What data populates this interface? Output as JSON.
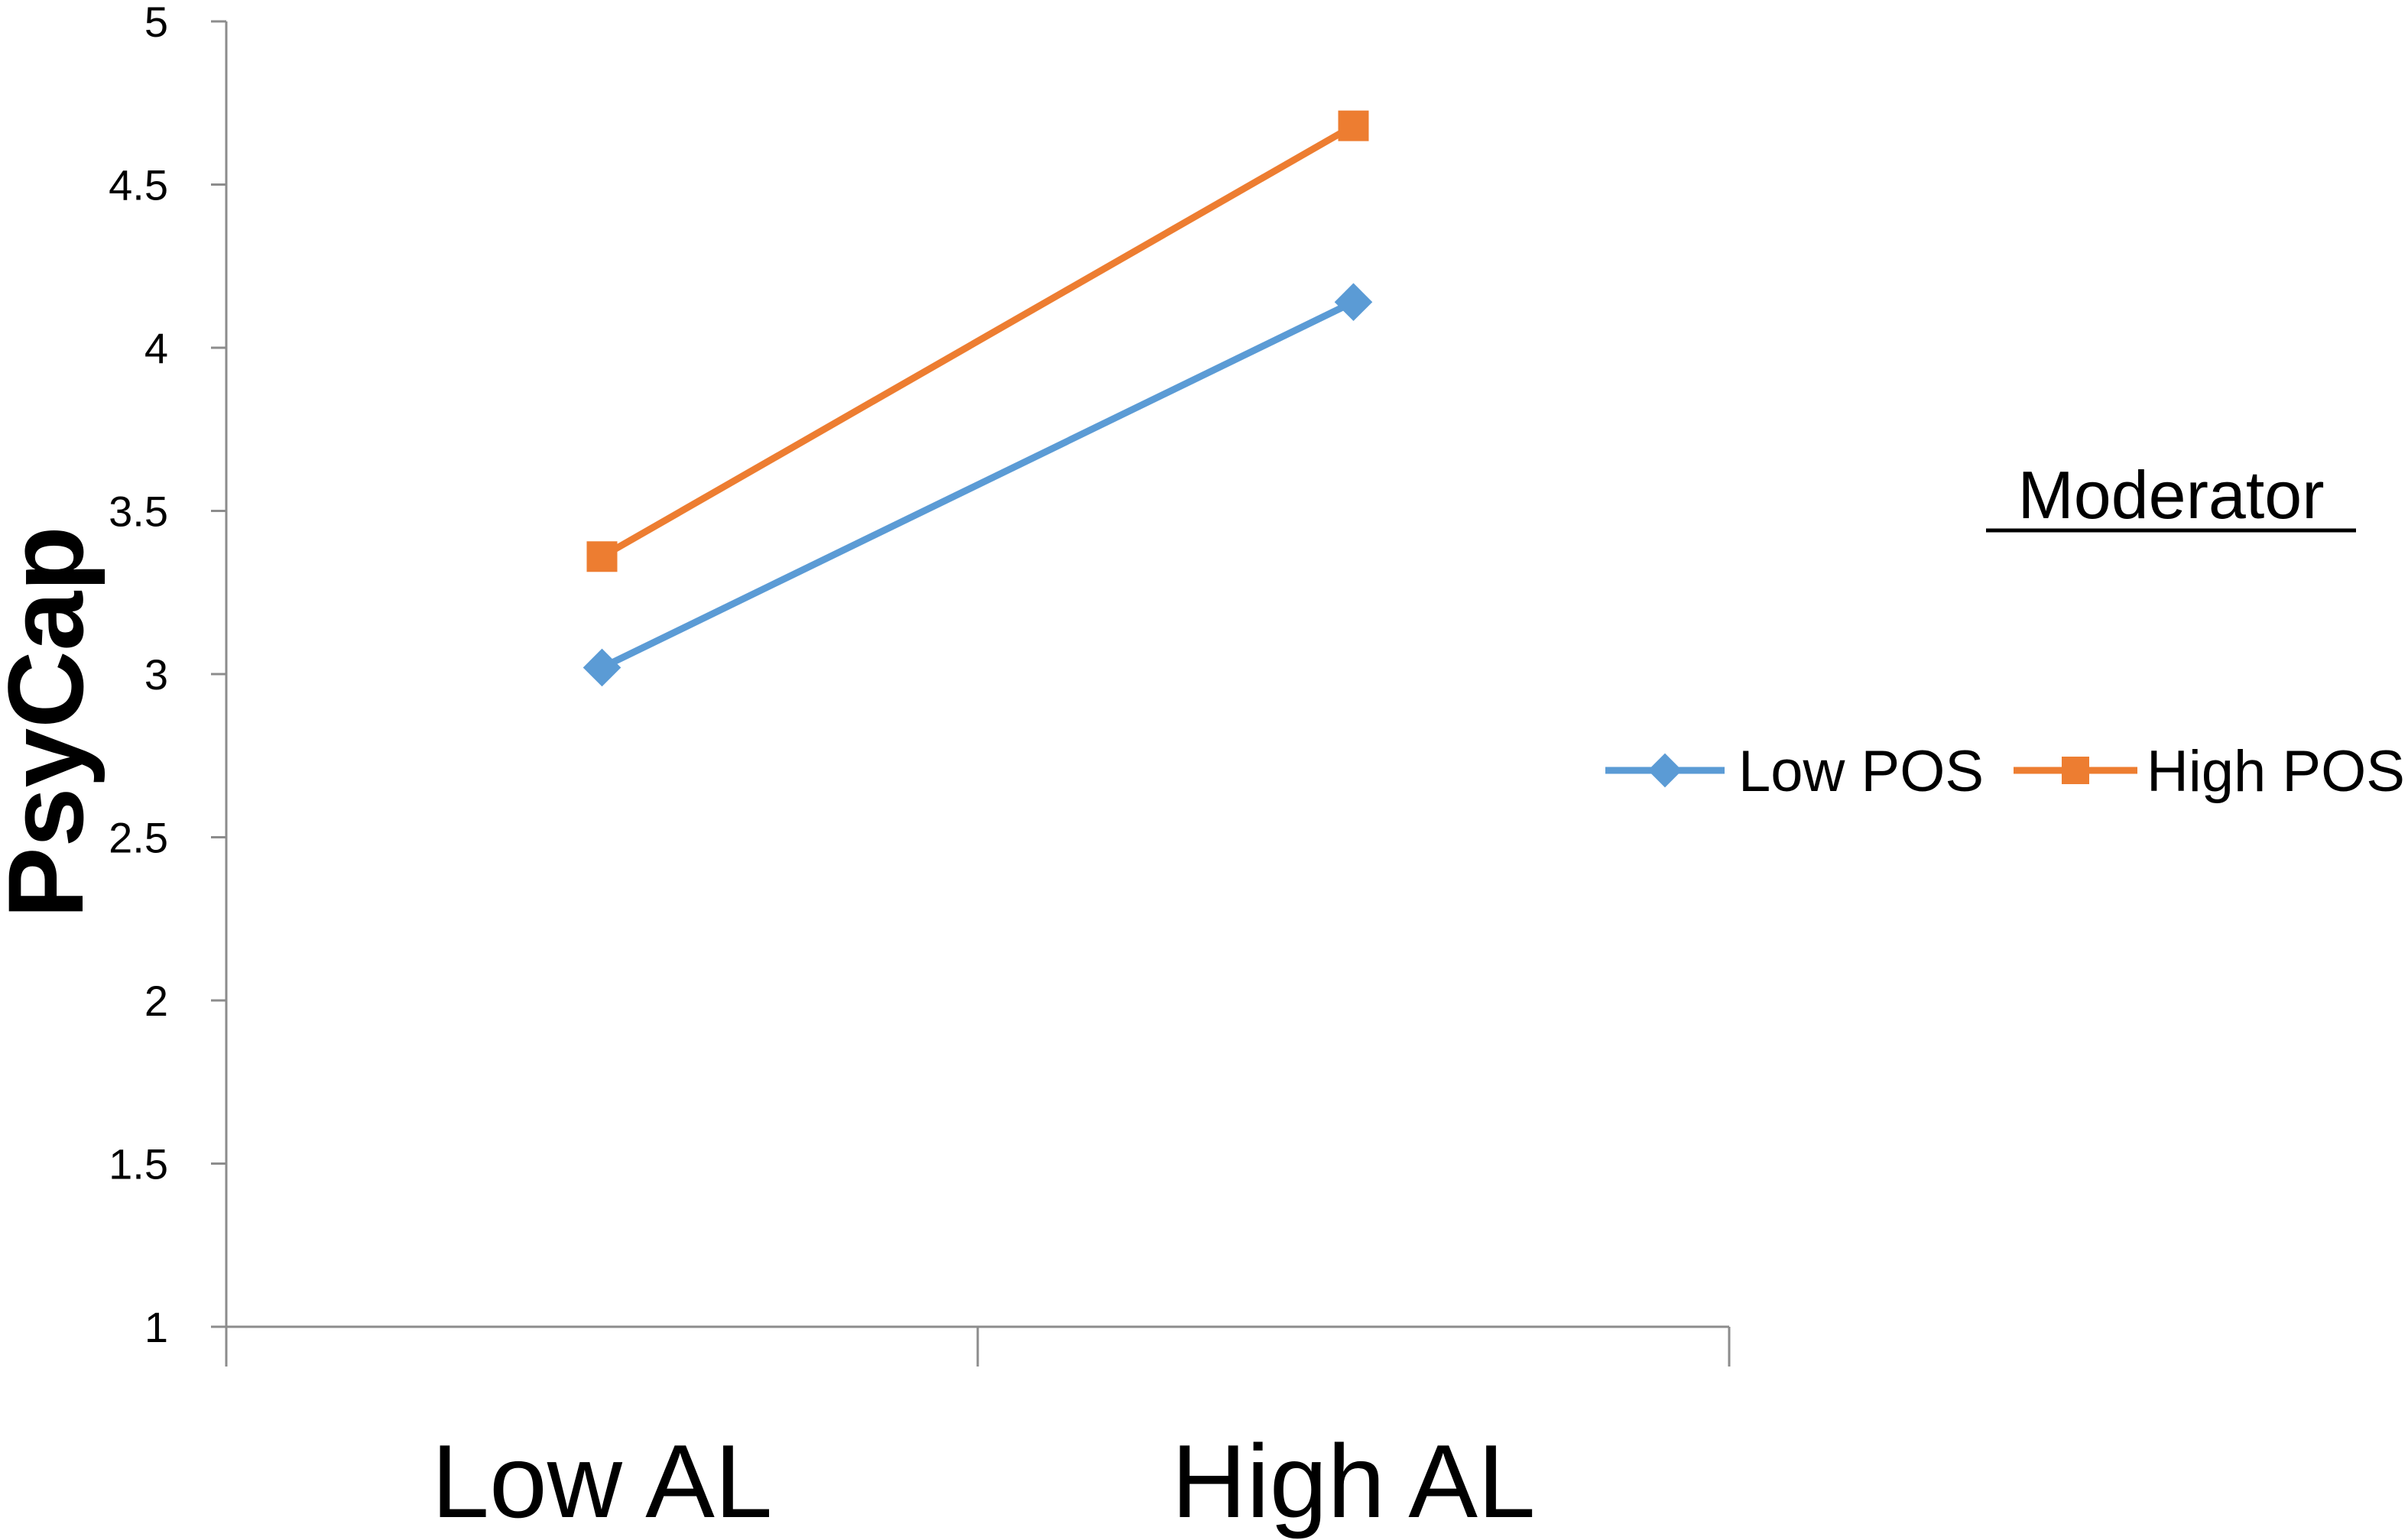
{
  "chart_data": {
    "type": "line",
    "title": "",
    "xlabel": "",
    "ylabel": "PsyCap",
    "categories": [
      "Low AL",
      "High AL"
    ],
    "ylim": [
      1,
      5
    ],
    "yticks": [
      "1",
      "1.5",
      "2",
      "2.5",
      "3",
      "3.5",
      "4",
      "4.5",
      "5"
    ],
    "grid": false,
    "legend": {
      "title": "Moderator",
      "placement": "right"
    },
    "series": [
      {
        "name": "Low POS",
        "values": [
          3.02,
          4.14
        ],
        "color": "#5B9BD5",
        "marker": "diamond"
      },
      {
        "name": "High POS",
        "values": [
          3.36,
          4.68
        ],
        "color": "#ED7D31",
        "marker": "square"
      }
    ]
  }
}
